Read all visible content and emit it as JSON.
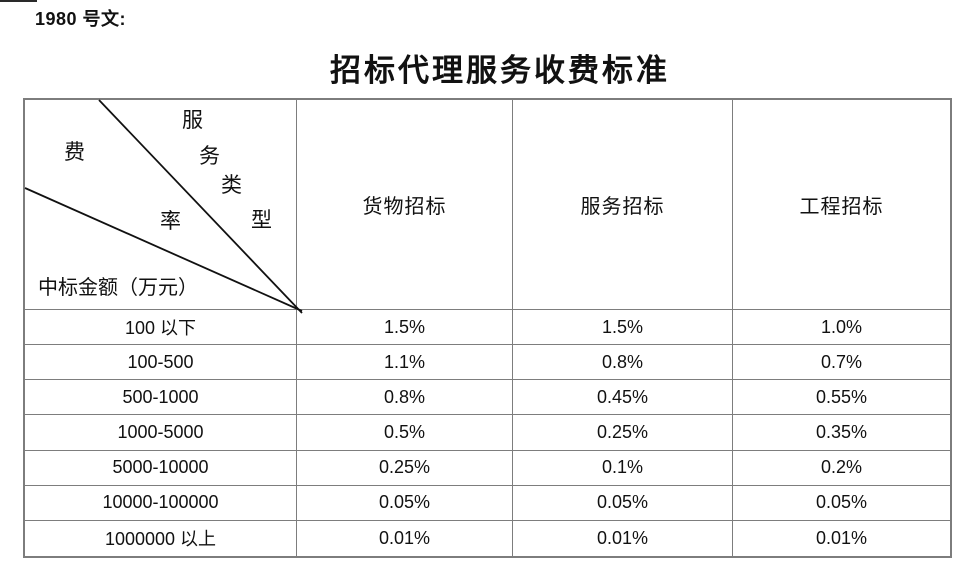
{
  "page": {
    "doc_ref": "1980 号文:",
    "title": "招标代理服务收费标准"
  },
  "table": {
    "border_color": "#7d7d7d",
    "corner": {
      "service_type_chars": [
        "服",
        "务",
        "类",
        "型"
      ],
      "fee_rate_chars": [
        "费",
        "率"
      ],
      "amount_label": "中标金额（万元）"
    },
    "columns": [
      "货物招标",
      "服务招标",
      "工程招标"
    ],
    "rows": [
      {
        "range": "100 以下",
        "values": [
          "1.5%",
          "1.5%",
          "1.0%"
        ]
      },
      {
        "range": "100-500",
        "values": [
          "1.1%",
          "0.8%",
          "0.7%"
        ]
      },
      {
        "range": "500-1000",
        "values": [
          "0.8%",
          "0.45%",
          "0.55%"
        ]
      },
      {
        "range": "1000-5000",
        "values": [
          "0.5%",
          "0.25%",
          "0.35%"
        ]
      },
      {
        "range": "5000-10000",
        "values": [
          "0.25%",
          "0.1%",
          "0.2%"
        ]
      },
      {
        "range": "10000-100000",
        "values": [
          "0.05%",
          "0.05%",
          "0.05%"
        ]
      },
      {
        "range": "1000000 以上",
        "values": [
          "0.01%",
          "0.01%",
          "0.01%"
        ]
      }
    ]
  }
}
